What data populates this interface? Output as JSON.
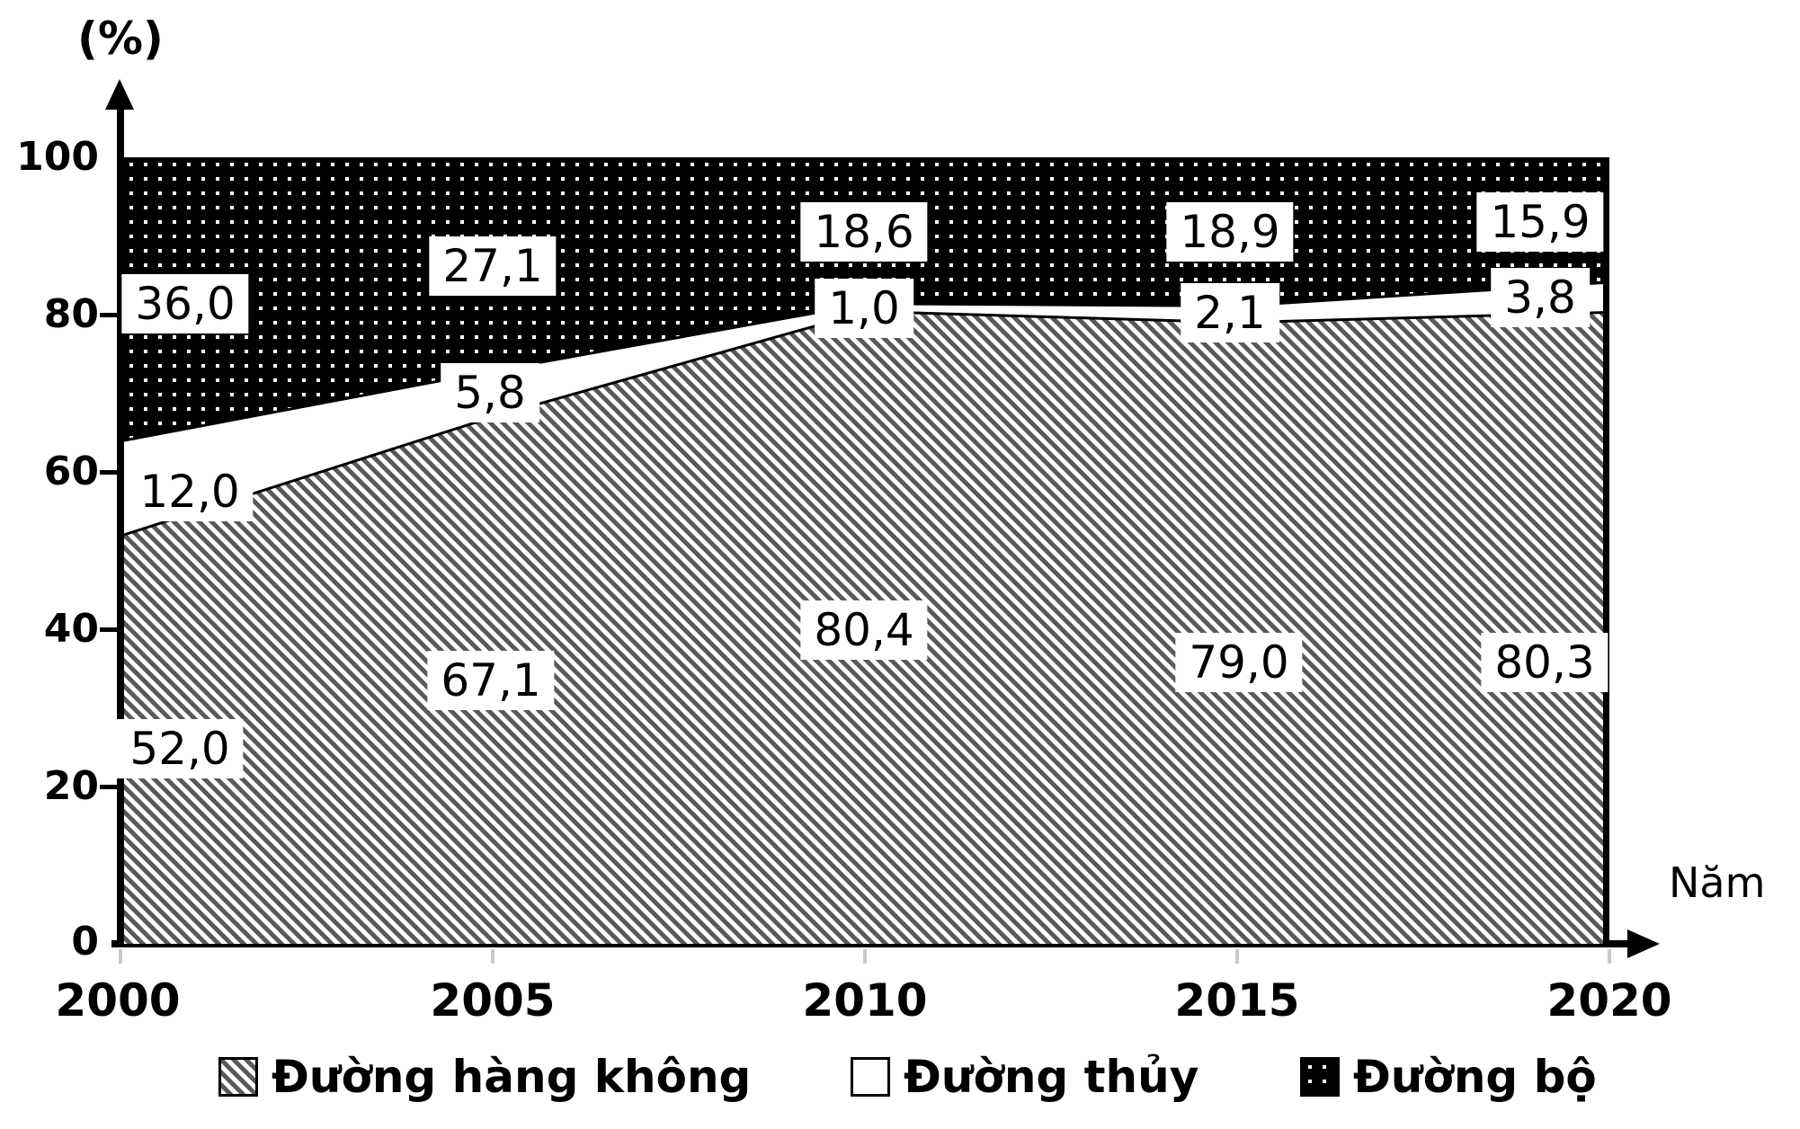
{
  "chart": {
    "y_axis_title": "(%)",
    "x_axis_title": "Năm"
  },
  "y_axis": {
    "ticks": [
      "100",
      "80",
      "60",
      "40",
      "20",
      "0"
    ]
  },
  "x_axis": {
    "ticks": [
      "2000",
      "2005",
      "2010",
      "2015",
      "2020"
    ]
  },
  "labels": {
    "y2000": {
      "air": "52,0",
      "water": "12,0",
      "road": "36,0"
    },
    "y2005": {
      "air": "67,1",
      "water": "5,8",
      "road": "27,1"
    },
    "y2010": {
      "air": "80,4",
      "water": "1,0",
      "road": "18,6"
    },
    "y2015": {
      "air": "79,0",
      "water": "2,1",
      "road": "18,9"
    },
    "y2020": {
      "air": "80,3",
      "water": "3,8",
      "road": "15,9"
    }
  },
  "legend": {
    "items": [
      {
        "label": "Đường hàng không",
        "swatch": "diagonal-hatch"
      },
      {
        "label": "Đường thủy",
        "swatch": "white"
      },
      {
        "label": "Đường bộ",
        "swatch": "black-dots"
      }
    ]
  },
  "colors": {
    "hatch_line": "#595959",
    "road_fill": "#000000",
    "water_fill": "#ffffff",
    "boundary_line": "#000000",
    "x_tick": "#c9c9c9"
  },
  "chart_data": {
    "type": "area",
    "stacked": true,
    "percent_total": 100,
    "x": [
      2000,
      2005,
      2010,
      2015,
      2020
    ],
    "series": [
      {
        "name": "Đường hàng không",
        "pattern": "diagonal-hatch",
        "values": [
          52.0,
          67.1,
          80.4,
          79.0,
          80.3
        ]
      },
      {
        "name": "Đường thủy",
        "pattern": "white",
        "values": [
          12.0,
          5.8,
          1.0,
          2.1,
          3.8
        ]
      },
      {
        "name": "Đường bộ",
        "pattern": "black-dots",
        "values": [
          36.0,
          27.1,
          18.6,
          18.9,
          15.9
        ]
      }
    ],
    "title": "",
    "xlabel": "Năm",
    "ylabel": "(%)",
    "ylim": [
      0,
      100
    ],
    "y_ticks": [
      0,
      20,
      40,
      60,
      80,
      100
    ],
    "grid": false,
    "legend_position": "bottom"
  }
}
